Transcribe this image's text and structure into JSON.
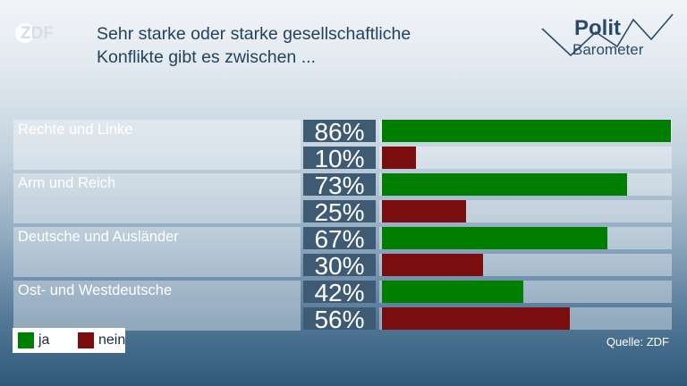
{
  "brand": {
    "logo_text": "ZDF",
    "panel_logo_line1": "Polit",
    "panel_logo_line2": "Barometer"
  },
  "header": {
    "title_line1": "Sehr starke oder starke gesellschaftliche",
    "title_line2": "Konflikte gibt es zwischen ..."
  },
  "colors": {
    "ja": "#007e00",
    "nein": "#7a0d0d",
    "pct_box": "#3f5b74",
    "title": "#23425f"
  },
  "chart_data": {
    "type": "bar",
    "orientation": "horizontal",
    "categories": [
      "Rechte und Linke",
      "Arm und Reich",
      "Deutsche und Ausländer",
      "Ost- und Westdeutsche"
    ],
    "series": [
      {
        "name": "ja",
        "values": [
          86,
          73,
          67,
          42
        ],
        "labels": [
          "86%",
          "73%",
          "67%",
          "42%"
        ]
      },
      {
        "name": "nein",
        "values": [
          10,
          25,
          30,
          56
        ],
        "labels": [
          "10%",
          "25%",
          "30%",
          "56%"
        ]
      }
    ],
    "xlim": [
      0,
      86
    ],
    "legend": "bottom-left",
    "source": "Quelle: ZDF"
  }
}
